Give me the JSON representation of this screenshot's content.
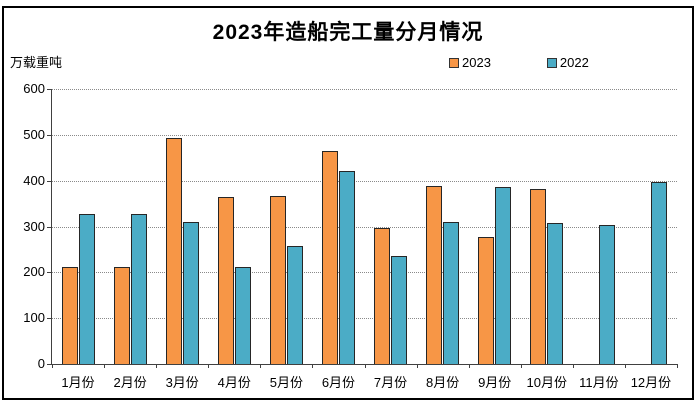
{
  "chart_data": {
    "type": "bar",
    "title": "2023年造船完工量分月情况",
    "unit_label": "万载重吨",
    "xlabel": "",
    "ylabel": "万载重吨",
    "ylim": [
      0,
      600
    ],
    "yticks": [
      0,
      100,
      200,
      300,
      400,
      500,
      600
    ],
    "grid": "horizontal-dotted",
    "legend_position": "top-right",
    "categories": [
      "1月份",
      "2月份",
      "3月份",
      "4月份",
      "5月份",
      "6月份",
      "7月份",
      "8月份",
      "9月份",
      "10月份",
      "11月份",
      "12月份"
    ],
    "series": [
      {
        "name": "2023",
        "color": "#F79646",
        "values": [
          212,
          212,
          494,
          364,
          367,
          465,
          296,
          389,
          276,
          381,
          null,
          null
        ]
      },
      {
        "name": "2022",
        "color": "#4BACC6",
        "values": [
          327,
          328,
          309,
          211,
          257,
          422,
          236,
          309,
          386,
          308,
          303,
          396
        ]
      }
    ]
  },
  "colors": {
    "series_2023": "#F79646",
    "series_2022": "#4BACC6",
    "bar_border": "#262626",
    "gridline": "#8a8a8a",
    "axis": "#404040",
    "frame_border": "#000000",
    "background": "#ffffff",
    "text": "#000000"
  },
  "legend": {
    "items": [
      {
        "label": "2023"
      },
      {
        "label": "2022"
      }
    ]
  }
}
